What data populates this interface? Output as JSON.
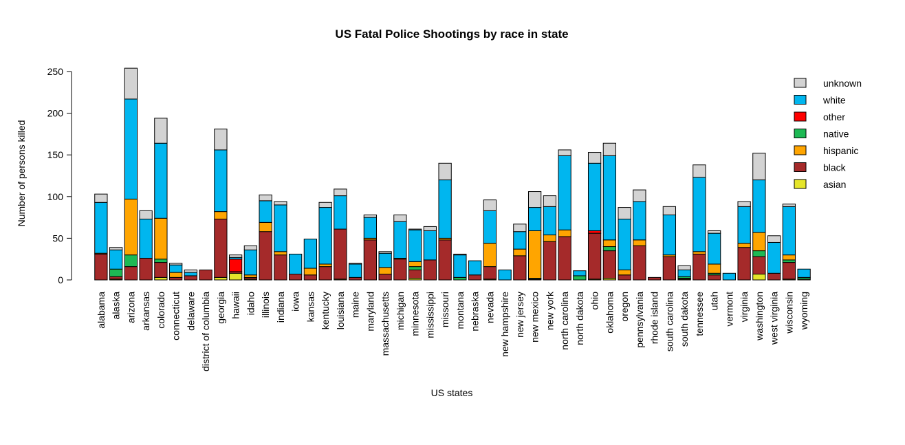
{
  "chart_data": {
    "type": "bar",
    "stacked": true,
    "title": "US Fatal Police Shootings by race in state",
    "xlabel": "US states",
    "ylabel": "Number of persons killed",
    "ylim": [
      0,
      250
    ],
    "yticks": [
      0,
      50,
      100,
      150,
      200,
      250
    ],
    "grid": false,
    "legend_position": "right",
    "categories": [
      "alabama",
      "alaska",
      "arizona",
      "arkansas",
      "colorado",
      "connecticut",
      "delaware",
      "district of columbia",
      "georgia",
      "hawaii",
      "idaho",
      "illinois",
      "indiana",
      "iowa",
      "kansas",
      "kentucky",
      "louisiana",
      "maine",
      "maryland",
      "massachusetts",
      "michigan",
      "minnesota",
      "mississippi",
      "missouri",
      "montana",
      "nebraska",
      "nevada",
      "new hampshire",
      "new jersey",
      "new mexico",
      "new york",
      "north carolina",
      "north dakota",
      "ohio",
      "oklahoma",
      "oregon",
      "pennsylvania",
      "rhode island",
      "south carolina",
      "south dakota",
      "tennessee",
      "utah",
      "vermont",
      "virginia",
      "washington",
      "west virginia",
      "wisconsin",
      "wyoming"
    ],
    "series": [
      {
        "name": "asian",
        "color": "#e5e52a",
        "values": [
          0,
          1,
          0,
          0,
          3,
          0,
          0,
          0,
          3,
          8,
          1,
          0,
          0,
          0,
          0,
          0,
          1,
          0,
          0,
          0,
          0,
          2,
          0,
          0,
          0,
          0,
          1,
          0,
          0,
          0,
          0,
          0,
          0,
          1,
          2,
          0,
          0,
          0,
          0,
          1,
          0,
          0,
          0,
          0,
          7,
          0,
          1,
          1
        ]
      },
      {
        "name": "black",
        "color": "#a52a2a",
        "values": [
          31,
          3,
          16,
          26,
          18,
          3,
          5,
          12,
          70,
          2,
          2,
          58,
          30,
          7,
          6,
          16,
          60,
          3,
          48,
          7,
          25,
          10,
          24,
          48,
          0,
          6,
          15,
          0,
          29,
          1,
          46,
          52,
          0,
          55,
          33,
          6,
          41,
          3,
          28,
          1,
          31,
          6,
          0,
          39,
          21,
          8,
          20,
          0
        ]
      },
      {
        "name": "other",
        "color": "#ff0000",
        "values": [
          0,
          0,
          0,
          0,
          0,
          0,
          0,
          0,
          0,
          15,
          0,
          0,
          0,
          0,
          0,
          0,
          0,
          0,
          0,
          0,
          0,
          0,
          0,
          0,
          0,
          0,
          0,
          0,
          0,
          0,
          0,
          0,
          0,
          3,
          0,
          0,
          0,
          0,
          0,
          0,
          0,
          0,
          0,
          0,
          0,
          0,
          0,
          0
        ]
      },
      {
        "name": "native",
        "color": "#1db954",
        "values": [
          0,
          9,
          14,
          0,
          4,
          0,
          0,
          0,
          0,
          0,
          0,
          0,
          0,
          0,
          0,
          0,
          0,
          0,
          0,
          0,
          0,
          4,
          0,
          0,
          3,
          0,
          0,
          0,
          0,
          1,
          0,
          0,
          5,
          0,
          5,
          0,
          0,
          0,
          0,
          2,
          0,
          2,
          0,
          0,
          7,
          0,
          3,
          2
        ]
      },
      {
        "name": "hispanic",
        "color": "#ffa500",
        "values": [
          1,
          0,
          67,
          0,
          49,
          6,
          0,
          0,
          9,
          0,
          3,
          11,
          4,
          0,
          8,
          3,
          0,
          0,
          2,
          8,
          1,
          6,
          0,
          2,
          0,
          0,
          28,
          0,
          8,
          57,
          8,
          8,
          0,
          0,
          8,
          6,
          7,
          0,
          2,
          0,
          3,
          11,
          0,
          5,
          22,
          0,
          6,
          0
        ]
      },
      {
        "name": "white",
        "color": "#00b6ef",
        "values": [
          61,
          23,
          120,
          47,
          90,
          9,
          4,
          0,
          74,
          2,
          30,
          26,
          56,
          24,
          35,
          68,
          40,
          16,
          25,
          17,
          44,
          38,
          35,
          70,
          27,
          17,
          39,
          12,
          21,
          28,
          34,
          89,
          6,
          81,
          101,
          61,
          46,
          0,
          48,
          8,
          89,
          37,
          8,
          44,
          63,
          37,
          58,
          10
        ]
      },
      {
        "name": "unknown",
        "color": "#d3d3d3",
        "values": [
          10,
          3,
          37,
          10,
          30,
          2,
          3,
          0,
          25,
          3,
          5,
          7,
          4,
          0,
          0,
          6,
          8,
          1,
          3,
          2,
          8,
          1,
          5,
          20,
          1,
          0,
          13,
          0,
          9,
          19,
          13,
          7,
          0,
          13,
          15,
          14,
          14,
          0,
          10,
          5,
          15,
          3,
          0,
          6,
          32,
          8,
          3,
          0
        ]
      }
    ],
    "legend_order": [
      "unknown",
      "white",
      "other",
      "native",
      "hispanic",
      "black",
      "asian"
    ]
  }
}
